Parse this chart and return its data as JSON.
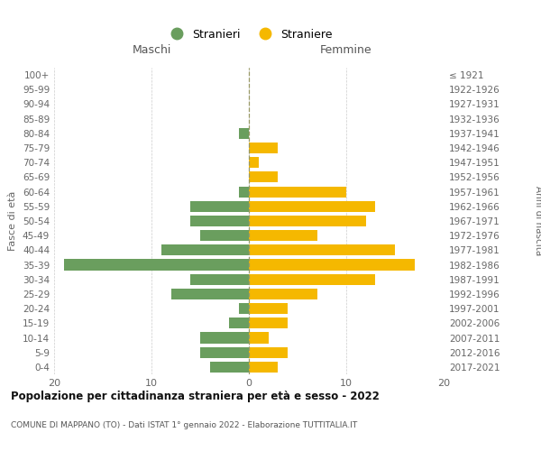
{
  "age_groups": [
    "0-4",
    "5-9",
    "10-14",
    "15-19",
    "20-24",
    "25-29",
    "30-34",
    "35-39",
    "40-44",
    "45-49",
    "50-54",
    "55-59",
    "60-64",
    "65-69",
    "70-74",
    "75-79",
    "80-84",
    "85-89",
    "90-94",
    "95-99",
    "100+"
  ],
  "birth_years": [
    "2017-2021",
    "2012-2016",
    "2007-2011",
    "2002-2006",
    "1997-2001",
    "1992-1996",
    "1987-1991",
    "1982-1986",
    "1977-1981",
    "1972-1976",
    "1967-1971",
    "1962-1966",
    "1957-1961",
    "1952-1956",
    "1947-1951",
    "1942-1946",
    "1937-1941",
    "1932-1936",
    "1927-1931",
    "1922-1926",
    "≤ 1921"
  ],
  "maschi": [
    4,
    5,
    5,
    2,
    1,
    8,
    6,
    19,
    9,
    5,
    6,
    6,
    1,
    0,
    0,
    0,
    1,
    0,
    0,
    0,
    0
  ],
  "femmine": [
    3,
    4,
    2,
    4,
    4,
    7,
    13,
    17,
    15,
    7,
    12,
    13,
    10,
    3,
    1,
    3,
    0,
    0,
    0,
    0,
    0
  ],
  "color_maschi": "#6a9e5e",
  "color_femmine": "#f5b800",
  "title": "Popolazione per cittadinanza straniera per età e sesso - 2022",
  "subtitle": "COMUNE DI MAPPANO (TO) - Dati ISTAT 1° gennaio 2022 - Elaborazione TUTTITALIA.IT",
  "ylabel_left": "Fasce di età",
  "ylabel_right": "Anni di nascita",
  "label_maschi": "Maschi",
  "label_femmine": "Femmine",
  "legend_maschi": "Stranieri",
  "legend_femmine": "Straniere",
  "xlim": 20,
  "background_color": "#ffffff",
  "grid_color": "#cccccc",
  "bar_height": 0.75
}
